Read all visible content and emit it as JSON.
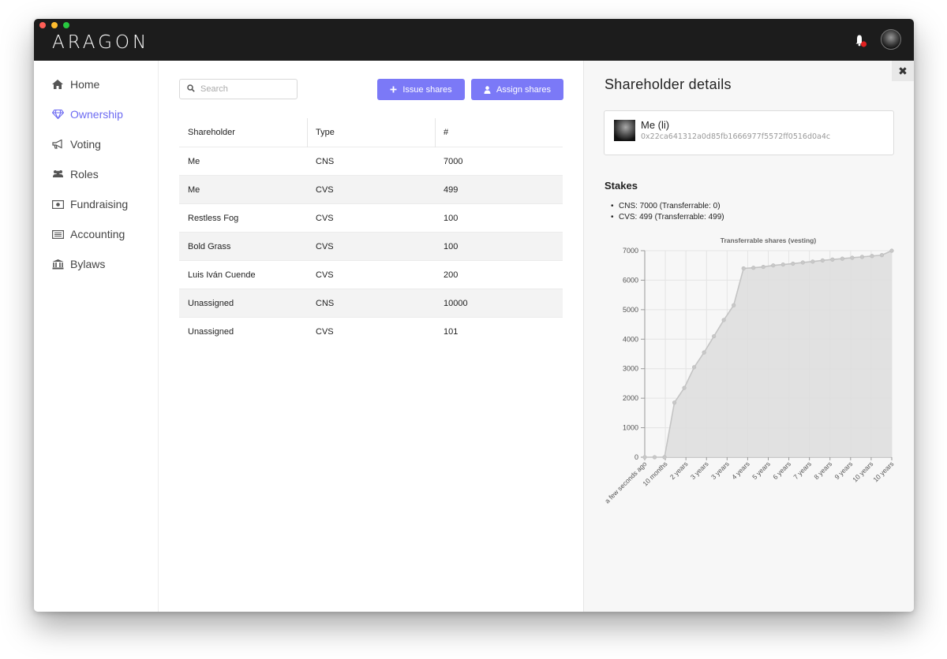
{
  "app": {
    "logo": "ARAGON"
  },
  "header": {
    "notification_icon": "bell-icon",
    "notification_color": "#e02020",
    "avatar": "user-avatar"
  },
  "sidebar": {
    "items": [
      {
        "label": "Home",
        "icon": "home-icon"
      },
      {
        "label": "Ownership",
        "icon": "diamond-icon",
        "active": true
      },
      {
        "label": "Voting",
        "icon": "megaphone-icon"
      },
      {
        "label": "Roles",
        "icon": "users-icon"
      },
      {
        "label": "Fundraising",
        "icon": "money-icon"
      },
      {
        "label": "Accounting",
        "icon": "ledger-icon"
      },
      {
        "label": "Bylaws",
        "icon": "bank-icon"
      }
    ],
    "active_color": "#6d6bf2"
  },
  "toolbar": {
    "search_placeholder": "Search",
    "issue_label": "Issue shares",
    "assign_label": "Assign shares",
    "button_color": "#7b79f7"
  },
  "table": {
    "headers": [
      "Shareholder",
      "Type",
      "#"
    ],
    "rows": [
      [
        "Me",
        "CNS",
        "7000"
      ],
      [
        "Me",
        "CVS",
        "499"
      ],
      [
        "Restless Fog",
        "CVS",
        "100"
      ],
      [
        "Bold Grass",
        "CVS",
        "100"
      ],
      [
        "Luis Iván Cuende",
        "CVS",
        "200"
      ],
      [
        "Unassigned",
        "CNS",
        "10000"
      ],
      [
        "Unassigned",
        "CVS",
        "101"
      ]
    ]
  },
  "details": {
    "title": "Shareholder details",
    "name": "Me (li)",
    "address": "0x22ca641312a0d85fb1666977f5572ff0516d0a4c",
    "stakes_title": "Stakes",
    "stakes": [
      "CNS: 7000 (Transferrable: 0)",
      "CVS: 499 (Transferrable: 499)"
    ],
    "close_icon": "close-icon"
  },
  "chart_data": {
    "type": "area",
    "title": "Transferrable shares (vesting)",
    "xlabel": "",
    "ylabel": "",
    "ylim": [
      0,
      7000
    ],
    "yticks": [
      0,
      1000,
      2000,
      3000,
      4000,
      5000,
      6000,
      7000
    ],
    "xtick_labels": [
      "a few seconds ago",
      "10 months",
      "2 years",
      "3 years",
      "3 years",
      "4 years",
      "5 years",
      "6 years",
      "7 years",
      "8 years",
      "9 years",
      "10 years",
      "10 years"
    ],
    "values": [
      0,
      0,
      0,
      1850,
      2350,
      3050,
      3550,
      4100,
      4650,
      5150,
      6400,
      6420,
      6450,
      6500,
      6530,
      6560,
      6600,
      6630,
      6670,
      6700,
      6730,
      6760,
      6790,
      6820,
      6850,
      6999
    ],
    "grid": true,
    "fill_color": "#dedede",
    "line_color": "#c4c4c4"
  }
}
